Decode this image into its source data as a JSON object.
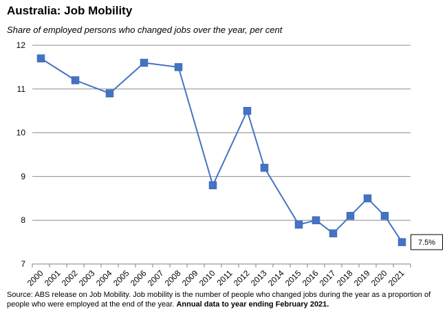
{
  "title": "Australia: Job Mobility",
  "subtitle": "Share of employed persons who changed jobs over the year, per cent",
  "source": {
    "text": "Source: ABS release on Job Mobility.    Job mobility is the number of people who changed jobs during the year as a proportion of people who were employed at the end of the year.",
    "emphasis": "Annual data to year ending February 2021."
  },
  "colors": {
    "series": "#4472C4",
    "grid": "#8C8C8C",
    "axis": "#808080"
  },
  "chart_data": {
    "type": "line",
    "categories": [
      "2000",
      "2001",
      "2002",
      "2003",
      "2004",
      "2005",
      "2006",
      "2007",
      "2008",
      "2009",
      "2010",
      "2011",
      "2012",
      "2013",
      "2014",
      "2015",
      "2016",
      "2017",
      "2018",
      "2019",
      "2020",
      "2021"
    ],
    "series": [
      {
        "values": [
          11.7,
          null,
          11.2,
          null,
          10.9,
          null,
          11.6,
          null,
          11.5,
          null,
          8.8,
          null,
          10.5,
          9.2,
          null,
          7.9,
          8.0,
          7.7,
          8.1,
          8.5,
          8.1,
          7.5
        ]
      }
    ],
    "ylim": [
      7,
      12
    ],
    "yticks": [
      "7",
      "8",
      "9",
      "10",
      "11",
      "12"
    ],
    "grid": true,
    "annotations": [
      {
        "category": "2021",
        "text": "7.5%"
      }
    ]
  }
}
